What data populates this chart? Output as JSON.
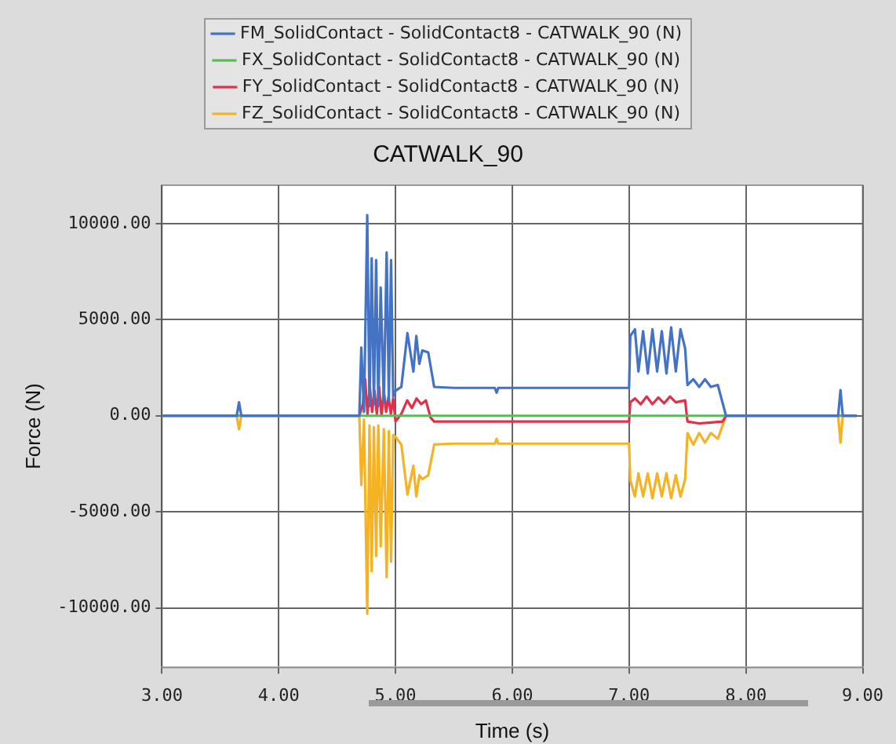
{
  "chart_data": {
    "type": "line",
    "title": "CATWALK_90",
    "xlabel": "Time (s)",
    "ylabel": "Force (N)",
    "xlim": [
      3,
      9
    ],
    "xticks": [
      {
        "value": 3,
        "label": "3.00"
      },
      {
        "value": 4,
        "label": "4.00"
      },
      {
        "value": 5,
        "label": "5.00"
      },
      {
        "value": 6,
        "label": "6.00"
      },
      {
        "value": 7,
        "label": "7.00"
      },
      {
        "value": 8,
        "label": "8.00"
      },
      {
        "value": 9,
        "label": "9.00"
      }
    ],
    "ylim": [
      -13100,
      12000
    ],
    "yticks": [
      {
        "value": -10000,
        "label": "-10000.00"
      },
      {
        "value": -5000,
        "label": "-5000.00"
      },
      {
        "value": 0,
        "label": "0.00"
      },
      {
        "value": 5000,
        "label": "5000.00"
      },
      {
        "value": 10000,
        "label": "10000.00"
      }
    ],
    "grid": true,
    "legend": "top",
    "marker": "none",
    "line_style": "solid",
    "series": [
      {
        "name": "FM_SolidContact - SolidContact8 - CATWALK_90 (N)",
        "color": "#4472c4",
        "x": [
          3,
          3.64,
          3.66,
          3.68,
          4.69,
          4.707,
          4.73,
          4.758,
          4.777,
          4.796,
          4.815,
          4.834,
          4.853,
          4.873,
          4.9,
          4.924,
          4.943,
          4.962,
          4.98,
          5.0,
          5.05,
          5.102,
          5.153,
          5.178,
          5.204,
          5.229,
          5.28,
          5.331,
          5.5,
          5.85,
          5.866,
          5.88,
          7.0,
          7.01,
          7.05,
          7.08,
          7.12,
          7.16,
          7.2,
          7.24,
          7.28,
          7.32,
          7.36,
          7.4,
          7.44,
          7.48,
          7.5,
          7.55,
          7.6,
          7.65,
          7.7,
          7.76,
          7.83,
          8.79,
          8.81,
          8.83,
          8.95
        ],
        "values": [
          0,
          0,
          700,
          0,
          0,
          3550,
          200,
          10440,
          500,
          8200,
          600,
          8100,
          500,
          6670,
          700,
          8500,
          800,
          8100,
          1000,
          1300,
          1500,
          4300,
          2300,
          4150,
          2700,
          3400,
          3300,
          1500,
          1450,
          1450,
          1200,
          1450,
          1450,
          4150,
          4500,
          2300,
          4400,
          2200,
          4500,
          2300,
          4400,
          2200,
          4600,
          2300,
          4500,
          3500,
          1600,
          1900,
          1500,
          1900,
          1500,
          1600,
          0,
          0,
          1330,
          0,
          0
        ]
      },
      {
        "name": "FX_SolidContact - SolidContact8 - CATWALK_90 (N)",
        "color": "#5cb85c",
        "x": [
          3,
          8.95
        ],
        "values": [
          0,
          0
        ]
      },
      {
        "name": "FY_SolidContact - SolidContact8 - CATWALK_90 (N)",
        "color": "#e0304a",
        "x": [
          3,
          4.69,
          4.72,
          4.74,
          4.76,
          4.78,
          4.8,
          4.82,
          4.84,
          4.86,
          4.88,
          4.9,
          4.92,
          4.94,
          4.96,
          4.98,
          5.0,
          5.05,
          5.1,
          5.14,
          5.18,
          5.22,
          5.26,
          5.3,
          5.331,
          5.5,
          7.0,
          7.01,
          7.05,
          7.1,
          7.15,
          7.2,
          7.25,
          7.3,
          7.35,
          7.4,
          7.48,
          7.5,
          7.6,
          7.7,
          7.8,
          7.83,
          8.95
        ],
        "values": [
          0,
          0,
          600,
          1900,
          100,
          1500,
          200,
          1300,
          100,
          1500,
          0,
          1300,
          200,
          1000,
          100,
          900,
          -300,
          100,
          800,
          400,
          900,
          600,
          800,
          -100,
          -300,
          -300,
          -300,
          700,
          900,
          600,
          1000,
          600,
          950,
          650,
          1000,
          700,
          800,
          -300,
          -400,
          -350,
          -300,
          0,
          0
        ]
      },
      {
        "name": "FZ_SolidContact - SolidContact8 - CATWALK_90 (N)",
        "color": "#f5b324",
        "x": [
          3,
          3.64,
          3.66,
          3.68,
          4.69,
          4.707,
          4.73,
          4.758,
          4.777,
          4.796,
          4.815,
          4.834,
          4.853,
          4.873,
          4.9,
          4.924,
          4.943,
          4.962,
          4.98,
          5.0,
          5.05,
          5.102,
          5.153,
          5.178,
          5.204,
          5.229,
          5.28,
          5.331,
          5.5,
          5.85,
          5.866,
          5.88,
          7.0,
          7.01,
          7.05,
          7.08,
          7.12,
          7.16,
          7.2,
          7.24,
          7.28,
          7.32,
          7.36,
          7.4,
          7.44,
          7.48,
          7.5,
          7.55,
          7.6,
          7.65,
          7.7,
          7.76,
          7.83,
          8.79,
          8.81,
          8.83,
          8.95
        ],
        "values": [
          0,
          0,
          -700,
          0,
          0,
          -3600,
          -200,
          -10300,
          -500,
          -8100,
          -600,
          -7300,
          -500,
          -6800,
          -700,
          -8400,
          -800,
          -7600,
          -1000,
          -1100,
          -1500,
          -4100,
          -2600,
          -4200,
          -3100,
          -3300,
          -3100,
          -1500,
          -1450,
          -1450,
          -1200,
          -1450,
          -1450,
          -3350,
          -4200,
          -3000,
          -4200,
          -3000,
          -4300,
          -3000,
          -4200,
          -3000,
          -4300,
          -3100,
          -4200,
          -3300,
          -900,
          -1500,
          -900,
          -1400,
          -900,
          -1200,
          0,
          0,
          -1400,
          0,
          0
        ]
      }
    ]
  }
}
